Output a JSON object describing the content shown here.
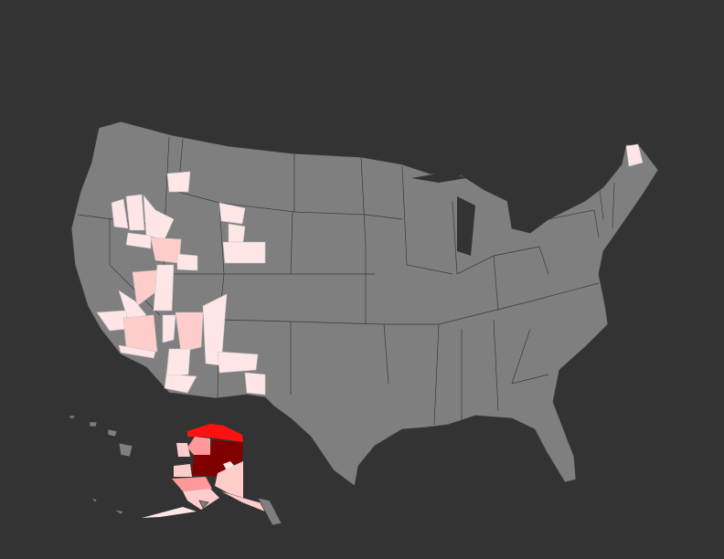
{
  "map": {
    "background": "#333333",
    "land_color": "#7f7f7f",
    "border_color": "#3a3a3a",
    "scale_colors": [
      "#ffe6e6",
      "#ffcccc",
      "#ff9999",
      "#ff1111",
      "#800000"
    ]
  }
}
